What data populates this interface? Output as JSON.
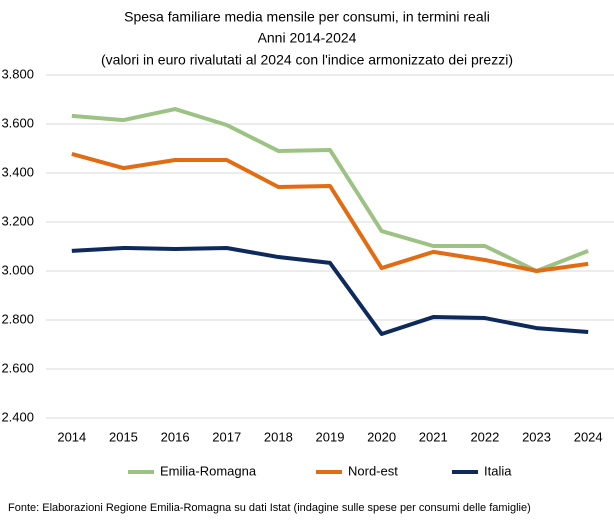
{
  "chart_data": {
    "type": "line",
    "title": [
      "Spesa familiare media mensile per consumi, in termini reali",
      "Anni 2014-2024",
      "(valori in euro rivalutati al 2024 con l'indice armonizzato dei prezzi)"
    ],
    "categories": [
      "2014",
      "2015",
      "2016",
      "2017",
      "2018",
      "2019",
      "2020",
      "2021",
      "2022",
      "2023",
      "2024"
    ],
    "series": [
      {
        "name": "Emilia-Romagna",
        "color": "#9dc384",
        "values": [
          3633,
          3616,
          3661,
          3596,
          3490,
          3494,
          3163,
          3102,
          3102,
          3000,
          3082
        ]
      },
      {
        "name": "Nord-est",
        "color": "#e36c12",
        "values": [
          3478,
          3420,
          3453,
          3453,
          3343,
          3347,
          3012,
          3078,
          3045,
          3000,
          3029
        ]
      },
      {
        "name": "Italia",
        "color": "#0e2a5c",
        "values": [
          3082,
          3094,
          3090,
          3094,
          3057,
          3033,
          2743,
          2812,
          2808,
          2767,
          2751
        ]
      }
    ],
    "ylim": [
      2400,
      3800
    ],
    "yticks": [
      {
        "value": 2400,
        "label": "2.400"
      },
      {
        "value": 2600,
        "label": "2.600"
      },
      {
        "value": 2800,
        "label": "2.800"
      },
      {
        "value": 3000,
        "label": "3.000"
      },
      {
        "value": 3200,
        "label": "3.200"
      },
      {
        "value": 3400,
        "label": "3.400"
      },
      {
        "value": 3600,
        "label": "3.600"
      },
      {
        "value": 3800,
        "label": "3.800"
      }
    ],
    "grid": true,
    "legend": "bottom",
    "source": "Fonte: Elaborazioni Regione Emilia-Romagna su dati Istat (indagine sulle spese per consumi delle famiglie)"
  }
}
